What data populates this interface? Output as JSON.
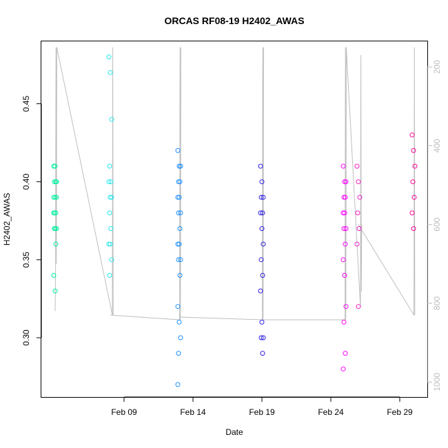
{
  "chart_data": {
    "type": "scatter",
    "title": "ORCAS RF08-19 H2402_AWAS",
    "xlabel": "Date",
    "ylabel": "H2402_AWAS",
    "y2label": "",
    "xlim": [
      "2016-02-03",
      "2016-03-02"
    ],
    "ylim": [
      0.262,
      0.49
    ],
    "y2lim": [
      1038,
      135
    ],
    "x_ticks": [
      {
        "date": "2016-02-09",
        "label": "Feb 09"
      },
      {
        "date": "2016-02-14",
        "label": "Feb 14"
      },
      {
        "date": "2016-02-19",
        "label": "Feb 19"
      },
      {
        "date": "2016-02-24",
        "label": "Feb 24"
      },
      {
        "date": "2016-02-29",
        "label": "Feb 29"
      }
    ],
    "y_ticks": [
      0.3,
      0.35,
      0.4,
      0.45
    ],
    "y_tick_labels": [
      "0.30",
      "0.35",
      "0.40",
      "0.45"
    ],
    "y2_ticks": [
      200,
      400,
      600,
      800,
      1000
    ],
    "y2_tick_labels": [
      "200",
      "400",
      "600",
      "800",
      "1000"
    ],
    "grid": false,
    "series": [
      {
        "color": "#00f0a0",
        "x": [
          "2016-02-04",
          "2016-02-04",
          "2016-02-04",
          "2016-02-04",
          "2016-02-04",
          "2016-02-04",
          "2016-02-04",
          "2016-02-04",
          "2016-02-04",
          "2016-02-04",
          "2016-02-04",
          "2016-02-04",
          "2016-02-04",
          "2016-02-04",
          "2016-02-04",
          "2016-02-04",
          "2016-02-04"
        ],
        "y": [
          0.41,
          0.41,
          0.4,
          0.4,
          0.4,
          0.39,
          0.39,
          0.39,
          0.38,
          0.38,
          0.38,
          0.37,
          0.37,
          0.37,
          0.36,
          0.34,
          0.33
        ]
      },
      {
        "color": "#22e6ee",
        "x": [
          "2016-02-08",
          "2016-02-08",
          "2016-02-08",
          "2016-02-08",
          "2016-02-08",
          "2016-02-08",
          "2016-02-08",
          "2016-02-08",
          "2016-02-08",
          "2016-02-08",
          "2016-02-08",
          "2016-02-08",
          "2016-02-08",
          "2016-02-08"
        ],
        "y": [
          0.48,
          0.47,
          0.44,
          0.41,
          0.4,
          0.4,
          0.39,
          0.39,
          0.38,
          0.37,
          0.36,
          0.36,
          0.35,
          0.34
        ]
      },
      {
        "color": "#1e90ff",
        "x": [
          "2016-02-13",
          "2016-02-13",
          "2016-02-13",
          "2016-02-13",
          "2016-02-13",
          "2016-02-13",
          "2016-02-13",
          "2016-02-13",
          "2016-02-13",
          "2016-02-13",
          "2016-02-13",
          "2016-02-13",
          "2016-02-13",
          "2016-02-13",
          "2016-02-13",
          "2016-02-13",
          "2016-02-13",
          "2016-02-13",
          "2016-02-13"
        ],
        "y": [
          0.42,
          0.41,
          0.41,
          0.4,
          0.4,
          0.39,
          0.39,
          0.38,
          0.38,
          0.37,
          0.36,
          0.36,
          0.35,
          0.35,
          0.34,
          0.32,
          0.31,
          0.3,
          0.29
        ]
      },
      {
        "color": "#1e90ff",
        "x": [
          "2016-02-13"
        ],
        "y": [
          0.27
        ]
      },
      {
        "color": "#2d1ee6",
        "x": [
          "2016-02-19",
          "2016-02-19",
          "2016-02-19",
          "2016-02-19",
          "2016-02-19",
          "2016-02-19",
          "2016-02-19",
          "2016-02-19",
          "2016-02-19",
          "2016-02-19",
          "2016-02-19",
          "2016-02-19",
          "2016-02-19",
          "2016-02-19",
          "2016-02-19"
        ],
        "y": [
          0.41,
          0.4,
          0.39,
          0.39,
          0.38,
          0.38,
          0.37,
          0.36,
          0.35,
          0.34,
          0.33,
          0.31,
          0.3,
          0.3,
          0.29
        ]
      },
      {
        "color": "#ff00ff",
        "x": [
          "2016-02-25",
          "2016-02-25",
          "2016-02-25",
          "2016-02-25",
          "2016-02-25",
          "2016-02-25",
          "2016-02-25",
          "2016-02-25",
          "2016-02-25",
          "2016-02-25",
          "2016-02-25",
          "2016-02-25",
          "2016-02-25",
          "2016-02-25",
          "2016-02-25",
          "2016-02-25"
        ],
        "y": [
          0.41,
          0.4,
          0.4,
          0.39,
          0.39,
          0.38,
          0.38,
          0.37,
          0.37,
          0.36,
          0.35,
          0.34,
          0.32,
          0.31,
          0.29,
          0.28
        ]
      },
      {
        "color": "#f01ec8",
        "x": [
          "2016-02-26",
          "2016-02-26",
          "2016-02-26",
          "2016-02-26",
          "2016-02-26",
          "2016-02-26",
          "2016-02-26"
        ],
        "y": [
          0.41,
          0.4,
          0.39,
          0.38,
          0.37,
          0.36,
          0.32
        ]
      },
      {
        "color": "#ff0096",
        "x": [
          "2016-03-01",
          "2016-03-01",
          "2016-03-01",
          "2016-03-01",
          "2016-03-01",
          "2016-03-01",
          "2016-03-01"
        ],
        "y": [
          0.43,
          0.42,
          0.41,
          0.4,
          0.39,
          0.38,
          0.37
        ]
      }
    ],
    "pressure_line_color": "#bebebe",
    "pressure_segments": [
      {
        "x": [
          "2016-02-04",
          "2016-02-04",
          "2016-02-04",
          "2016-02-04",
          "2016-02-04",
          "2016-02-08",
          "2016-02-08",
          "2016-02-08"
        ],
        "y2": [
          820,
          720,
          150,
          700,
          150,
          830,
          150,
          830
        ]
      },
      {
        "x": [
          "2016-02-08",
          "2016-02-13",
          "2016-02-13",
          "2016-02-13",
          "2016-02-13"
        ],
        "y2": [
          830,
          842,
          150,
          842,
          150
        ]
      },
      {
        "x": [
          "2016-02-13",
          "2016-02-19",
          "2016-02-19",
          "2016-02-19",
          "2016-02-19"
        ],
        "y2": [
          835,
          842,
          150,
          842,
          150
        ]
      },
      {
        "x": [
          "2016-02-19",
          "2016-02-25",
          "2016-02-25",
          "2016-02-25",
          "2016-02-25",
          "2016-02-26",
          "2016-02-26",
          "2016-02-26",
          "2016-02-26"
        ],
        "y2": [
          842,
          842,
          150,
          842,
          150,
          810,
          170,
          770,
          600
        ]
      },
      {
        "x": [
          "2016-02-26",
          "2016-03-01",
          "2016-03-01",
          "2016-03-01"
        ],
        "y2": [
          600,
          830,
          150,
          830
        ]
      }
    ]
  }
}
